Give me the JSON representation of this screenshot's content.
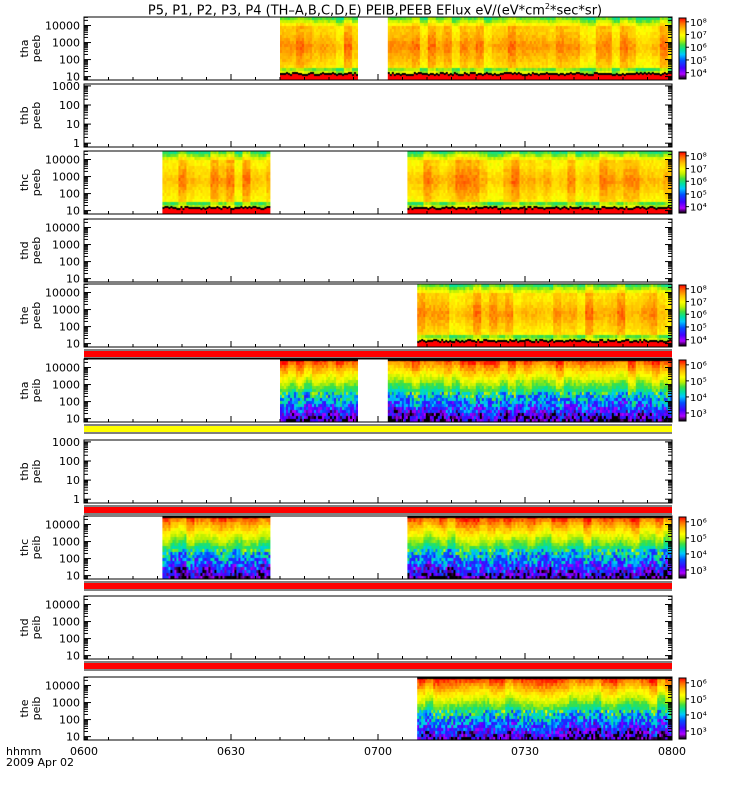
{
  "title": {
    "main": "P5, P1, P2, P3, P4 (TH–A,B,C,D,E) PEIB,PEEB EFlux eV/(eV*cm",
    "sup": "2",
    "tail": "*sec*sr)"
  },
  "footer": {
    "time_label": "hhmm",
    "date_label": "2009 Apr 02"
  },
  "chart_data": {
    "type": "heatmap",
    "x_unit": "hhmm",
    "x_ticks": [
      "0600",
      "0630",
      "0700",
      "0730",
      "0800"
    ],
    "x_tick_minutes": [
      0,
      30,
      60,
      90,
      120
    ],
    "x_range_minutes": [
      0,
      120
    ],
    "colorscale": [
      "#000000",
      "#b000ff",
      "#4000ff",
      "#0050ff",
      "#00c8ff",
      "#00e0a0",
      "#40e040",
      "#c0f000",
      "#ffff00",
      "#ffc000",
      "#ff7000",
      "#ff0000"
    ],
    "panels": [
      {
        "id": "tha-peeb",
        "ylabel": [
          "tha",
          "peeb"
        ],
        "yticks": [
          "10000",
          "1000",
          "100",
          "10"
        ],
        "log_range": [
          0.8,
          4.5
        ],
        "intervals": [
          [
            40,
            56
          ],
          [
            62,
            120
          ]
        ],
        "cbar": {
          "labels": [
            "10⁸",
            "10⁷",
            "10⁶",
            "10⁵",
            "10⁴"
          ],
          "exp": [
            8,
            7,
            6,
            5,
            4
          ]
        },
        "flag": "none"
      },
      {
        "id": "thb-peeb",
        "ylabel": [
          "thb",
          "peeb"
        ],
        "yticks": [
          "1000",
          "100",
          "10",
          "1"
        ],
        "log_range": [
          -0.2,
          3.1
        ],
        "intervals": [],
        "cbar": null,
        "flag": "none"
      },
      {
        "id": "thc-peeb",
        "ylabel": [
          "thc",
          "peeb"
        ],
        "yticks": [
          "10000",
          "1000",
          "100",
          "10"
        ],
        "log_range": [
          0.8,
          4.5
        ],
        "intervals": [
          [
            16,
            38
          ],
          [
            66,
            120
          ]
        ],
        "cbar": {
          "labels": [
            "10⁸",
            "10⁷",
            "10⁶",
            "10⁵",
            "10⁴"
          ],
          "exp": [
            8,
            7,
            6,
            5,
            4
          ]
        },
        "flag": "none"
      },
      {
        "id": "thd-peeb",
        "ylabel": [
          "thd",
          "peeb"
        ],
        "yticks": [
          "10000",
          "1000",
          "100",
          "10"
        ],
        "log_range": [
          0.8,
          4.5
        ],
        "intervals": [],
        "cbar": null,
        "flag": "none"
      },
      {
        "id": "the-peeb",
        "ylabel": [
          "the",
          "peeb"
        ],
        "yticks": [
          "10000",
          "1000",
          "100",
          "10"
        ],
        "log_range": [
          0.8,
          4.5
        ],
        "intervals": [
          [
            68,
            120
          ]
        ],
        "cbar": {
          "labels": [
            "10⁸",
            "10⁷",
            "10⁶",
            "10⁵",
            "10⁴"
          ],
          "exp": [
            8,
            7,
            6,
            5,
            4
          ]
        },
        "flag": "red"
      },
      {
        "id": "tha-peib",
        "ylabel": [
          "tha",
          "peib"
        ],
        "yticks": [
          "10000",
          "1000",
          "100",
          "10"
        ],
        "log_range": [
          0.8,
          4.5
        ],
        "intervals": [
          [
            40,
            56
          ],
          [
            62,
            120
          ]
        ],
        "cbar": {
          "labels": [
            "10⁶",
            "10⁵",
            "10⁴",
            "10³"
          ],
          "exp": [
            6,
            5,
            4,
            3
          ]
        },
        "flag": "yellow"
      },
      {
        "id": "thb-peib",
        "ylabel": [
          "thb",
          "peib"
        ],
        "yticks": [
          "1000",
          "100",
          "10",
          "1"
        ],
        "log_range": [
          -0.2,
          3.1
        ],
        "intervals": [],
        "cbar": null,
        "flag": "red"
      },
      {
        "id": "thc-peib",
        "ylabel": [
          "thc",
          "peib"
        ],
        "yticks": [
          "10000",
          "1000",
          "100",
          "10"
        ],
        "log_range": [
          0.8,
          4.5
        ],
        "intervals": [
          [
            16,
            38
          ],
          [
            66,
            120
          ]
        ],
        "cbar": {
          "labels": [
            "10⁶",
            "10⁵",
            "10⁴",
            "10³"
          ],
          "exp": [
            6,
            5,
            4,
            3
          ]
        },
        "flag": "red"
      },
      {
        "id": "thd-peib",
        "ylabel": [
          "thd",
          "peib"
        ],
        "yticks": [
          "10000",
          "1000",
          "100",
          "10"
        ],
        "log_range": [
          0.8,
          4.5
        ],
        "intervals": [],
        "cbar": null,
        "flag": "red"
      },
      {
        "id": "the-peib",
        "ylabel": [
          "the",
          "peib"
        ],
        "yticks": [
          "10000",
          "1000",
          "100",
          "10"
        ],
        "log_range": [
          0.8,
          4.5
        ],
        "intervals": [
          [
            68,
            120
          ]
        ],
        "cbar": {
          "labels": [
            "10⁶",
            "10⁵",
            "10⁴",
            "10³"
          ],
          "exp": [
            6,
            5,
            4,
            3
          ]
        },
        "flag": "none"
      }
    ]
  }
}
